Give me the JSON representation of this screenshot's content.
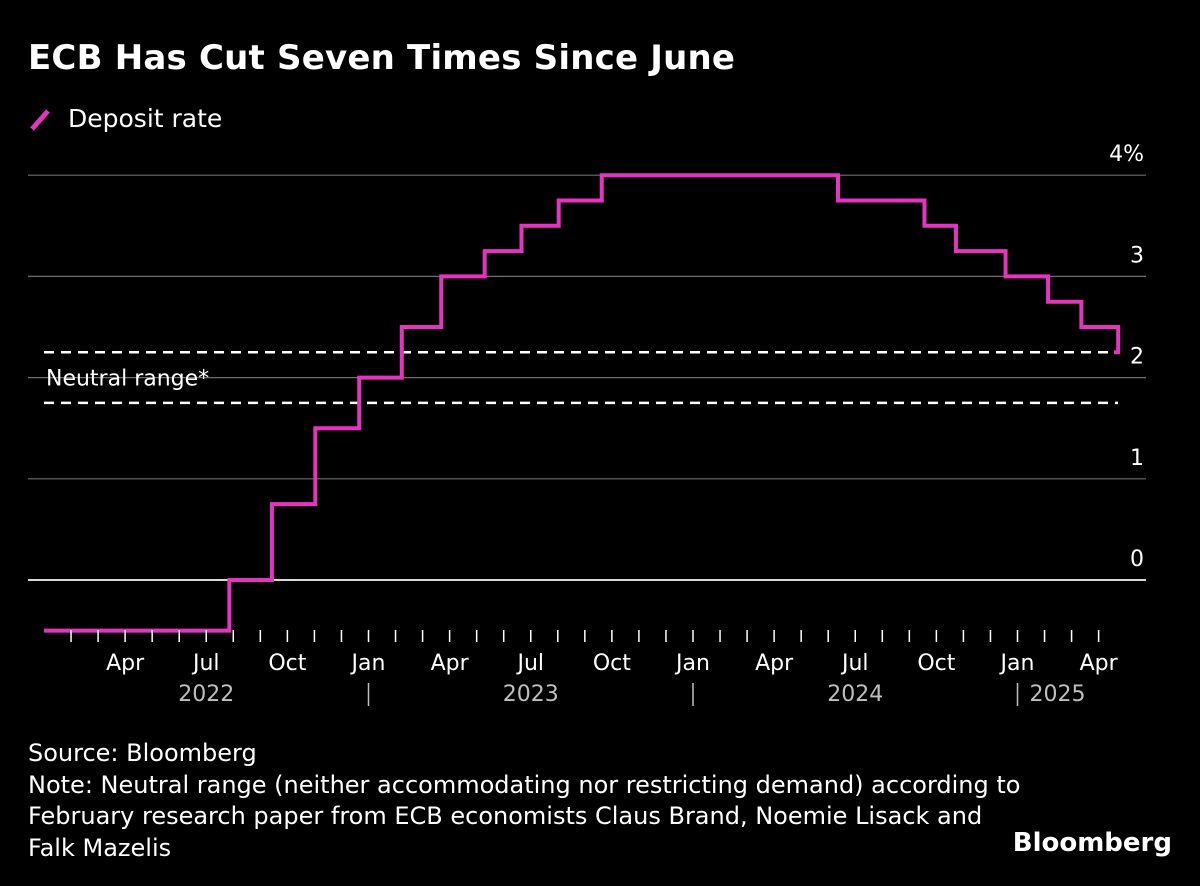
{
  "chart_data": {
    "type": "line",
    "title": "ECB Has Cut Seven Times Since June",
    "xlabel": "",
    "ylabel": "",
    "ylim": [
      -0.5,
      4
    ],
    "y_ticks": [
      {
        "value": 0,
        "label": "0"
      },
      {
        "value": 1,
        "label": "1"
      },
      {
        "value": 2,
        "label": "2"
      },
      {
        "value": 3,
        "label": "3"
      },
      {
        "value": 4,
        "label": "4%"
      }
    ],
    "x_month_ticks": [
      {
        "t": 2022.25,
        "label": "Apr"
      },
      {
        "t": 2022.5,
        "label": "Jul"
      },
      {
        "t": 2022.75,
        "label": "Oct"
      },
      {
        "t": 2023.0,
        "label": "Jan"
      },
      {
        "t": 2023.25,
        "label": "Apr"
      },
      {
        "t": 2023.5,
        "label": "Jul"
      },
      {
        "t": 2023.75,
        "label": "Oct"
      },
      {
        "t": 2024.0,
        "label": "Jan"
      },
      {
        "t": 2024.25,
        "label": "Apr"
      },
      {
        "t": 2024.5,
        "label": "Jul"
      },
      {
        "t": 2024.75,
        "label": "Oct"
      },
      {
        "t": 2025.0,
        "label": "Jan"
      },
      {
        "t": 2025.25,
        "label": "Apr"
      }
    ],
    "x_year_labels": [
      {
        "t": 2022.5,
        "label": "2022"
      },
      {
        "t": 2023.5,
        "label": "2023"
      },
      {
        "t": 2024.5,
        "label": "2024"
      },
      {
        "t": 2025.1,
        "label": "2025"
      }
    ],
    "x_year_dividers": [
      2023.0,
      2024.0,
      2025.0
    ],
    "neutral_range": {
      "label": "Neutral range*",
      "low": 1.75,
      "high": 2.25
    },
    "series": [
      {
        "name": "Deposit rate",
        "color": "#e535c0",
        "step": true,
        "points": [
          {
            "date": "2022-01-01",
            "value": -0.5
          },
          {
            "date": "2022-07-27",
            "value": 0.0
          },
          {
            "date": "2022-09-14",
            "value": 0.75
          },
          {
            "date": "2022-11-02",
            "value": 1.5
          },
          {
            "date": "2022-12-21",
            "value": 2.0
          },
          {
            "date": "2023-02-08",
            "value": 2.5
          },
          {
            "date": "2023-03-22",
            "value": 3.0
          },
          {
            "date": "2023-05-10",
            "value": 3.25
          },
          {
            "date": "2023-06-21",
            "value": 3.5
          },
          {
            "date": "2023-08-02",
            "value": 3.75
          },
          {
            "date": "2023-09-20",
            "value": 4.0
          },
          {
            "date": "2024-06-12",
            "value": 3.75
          },
          {
            "date": "2024-09-18",
            "value": 3.5
          },
          {
            "date": "2024-10-23",
            "value": 3.25
          },
          {
            "date": "2024-12-18",
            "value": 3.0
          },
          {
            "date": "2025-02-05",
            "value": 2.75
          },
          {
            "date": "2025-03-12",
            "value": 2.5
          },
          {
            "date": "2025-04-23",
            "value": 2.25
          }
        ],
        "end_date": "2025-05-01"
      }
    ],
    "grid": true,
    "legend_position": "top-left"
  },
  "notes": {
    "source": "Source: Bloomberg",
    "note_lines": [
      "Note: Neutral range (neither accommodating nor restricting demand) according to",
      "February research paper from ECB economists Claus Brand, Noemie Lisack and",
      "Falk Mazelis"
    ]
  },
  "brand": "Bloomberg"
}
